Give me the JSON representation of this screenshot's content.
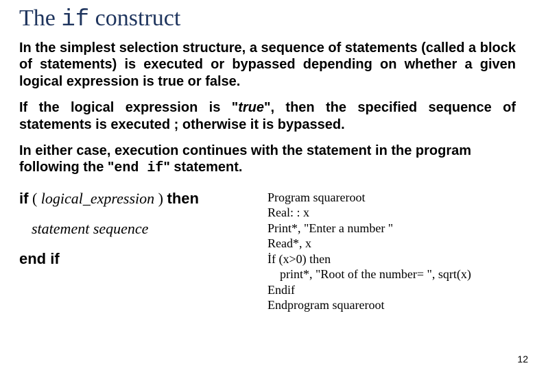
{
  "title_parts": {
    "pre": "The ",
    "code": "if",
    "post": " construct"
  },
  "para1": {
    "text": "In the simplest selection structure, a sequence of statements (called a block of statements) is executed or bypassed depending on whether a given logical expression is true or false."
  },
  "para2": {
    "pre": " If the logical expression is ",
    "q1": "\"",
    "italic": "true",
    "q2": "\"",
    "post": ", then the specified sequence of statements is executed ; otherwise it is bypassed."
  },
  "para3": {
    "pre": " In either case, execution continues with the statement in the program following the ",
    "q1": "\"",
    "mono": "end if",
    "q2": "\"",
    "post": " statement."
  },
  "syntax": {
    "if_kw": "if",
    "open": " ( ",
    "expr": "logical_expression",
    "close": " ) ",
    "then_kw": " then",
    "stmt": "statement sequence",
    "endif_kw": "end if"
  },
  "code": "Program squareroot\nReal: : x\nPrint*, \"Enter a number \"\nRead*, x\nİf (x>0) then\n    print*, \"Root of the number= \", sqrt(x)\nEndif\nEndprogram squareroot",
  "page_number": "12",
  "colors": {
    "title": "#1f355e",
    "text": "#000000",
    "background": "#ffffff"
  }
}
